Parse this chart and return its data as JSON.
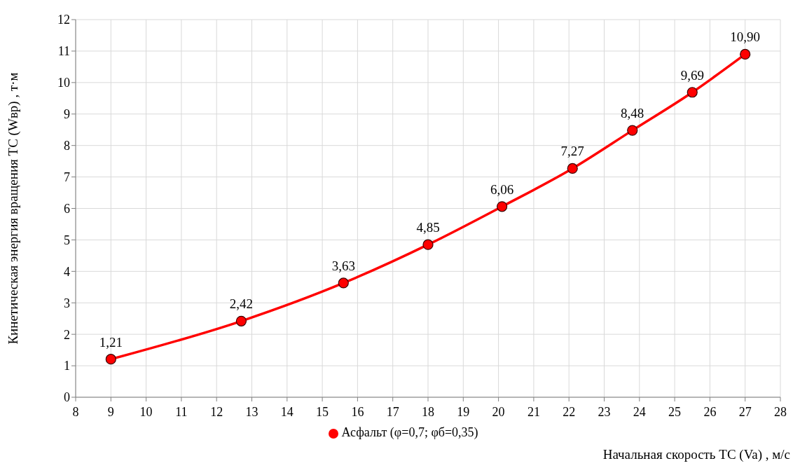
{
  "chart_data": {
    "type": "line",
    "xlabel": "Начальная скорость  ТС (Va) , м/с",
    "ylabel": "Кинетическая энергия вращения  ТС (Wвр) , т·м",
    "x": [
      9,
      12.7,
      15.6,
      18,
      20.1,
      22.1,
      23.8,
      25.5,
      27
    ],
    "series": [
      {
        "name": "Асфальт (φ=0,7; φб=0,35)",
        "color": "#ff0000",
        "values": [
          1.21,
          2.42,
          3.63,
          4.85,
          6.06,
          7.27,
          8.48,
          9.69,
          10.9
        ],
        "value_labels": [
          "1,21",
          "2,42",
          "3,63",
          "4,85",
          "6,06",
          "7,27",
          "8,48",
          "9,69",
          "10,90"
        ]
      }
    ],
    "xlim": [
      8,
      28
    ],
    "xticks": [
      8,
      9,
      10,
      11,
      12,
      13,
      14,
      15,
      16,
      17,
      18,
      19,
      20,
      21,
      22,
      23,
      24,
      25,
      26,
      27,
      28
    ],
    "ylim": [
      0,
      12
    ],
    "yticks": [
      0,
      1,
      2,
      3,
      4,
      5,
      6,
      7,
      8,
      9,
      10,
      11,
      12
    ],
    "grid": true,
    "legend": "bottom",
    "marker": "circle",
    "line_style": "solid"
  }
}
